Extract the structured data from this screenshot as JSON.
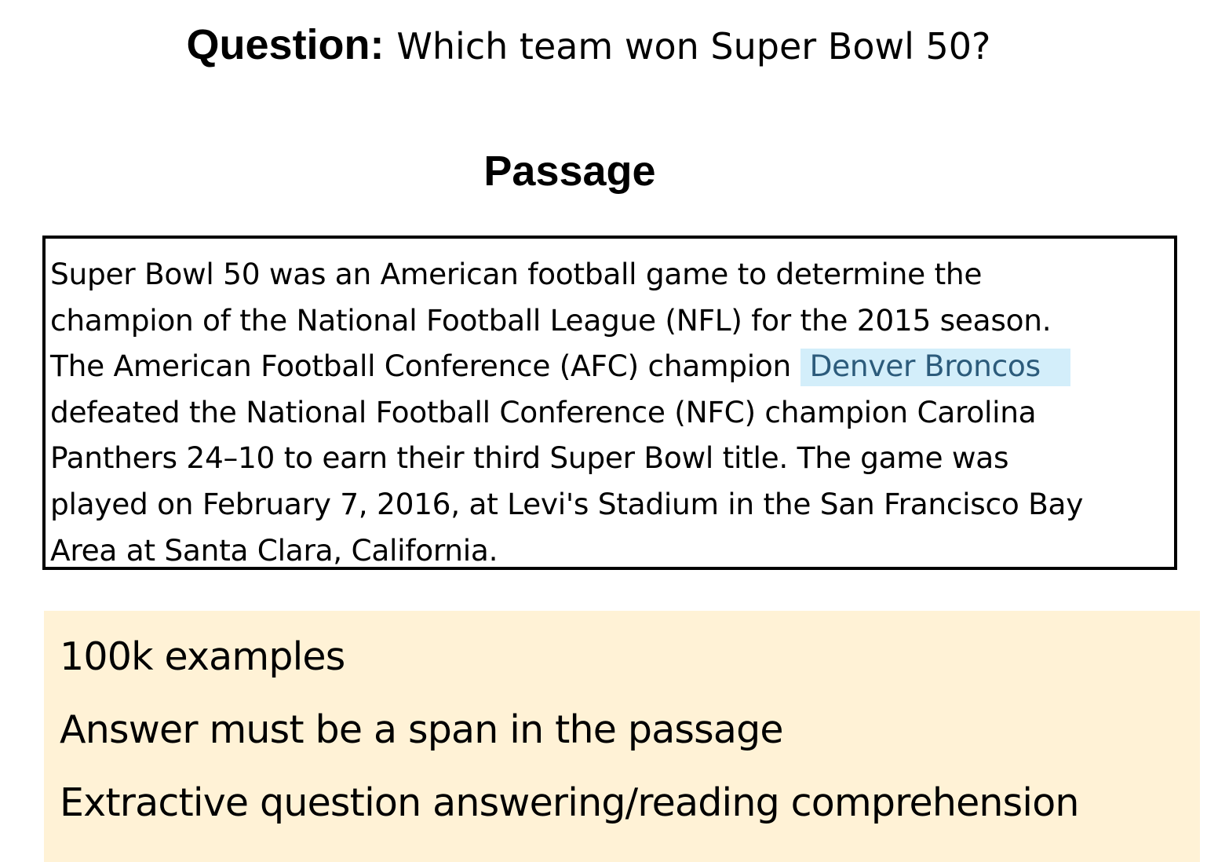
{
  "question": {
    "label": "Question:",
    "text": "Which team won Super Bowl 50?"
  },
  "passage": {
    "heading": "Passage",
    "lines": [
      "Super Bowl 50 was an American football game to determine the",
      "champion of the National Football League (NFL) for the 2015 season.",
      "The American Football Conference (AFC) champion",
      "defeated the National Football Conference (NFC) champion Carolina",
      "Panthers 24–10 to earn their third Super Bowl title. The game was",
      "played on February 7, 2016, at Levi's Stadium in the San Francisco Bay",
      "Area at Santa Clara, California."
    ],
    "answer_span": "Denver Broncos"
  },
  "summary": {
    "items": [
      "100k examples",
      "Answer must be a span in the passage",
      "Extractive question answering/reading comprehension"
    ]
  },
  "colors": {
    "highlight_bg": "#d3eefa",
    "highlight_text": "#2c5b7b",
    "summary_bg": "#fff2d6"
  }
}
